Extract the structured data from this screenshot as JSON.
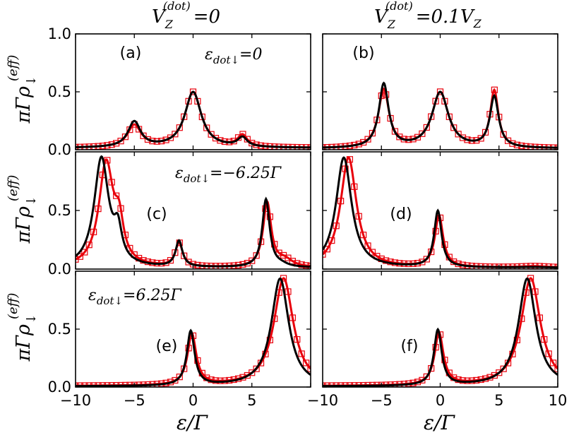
{
  "chart_data": {
    "type": "line",
    "layout": "3x2 grid of subplots, shared x axis per column, shared y axis per row",
    "column_titles": [
      {
        "lhs": "V",
        "sub": "Z",
        "sup": "(dot)",
        "rhs": "=0"
      },
      {
        "lhs": "V",
        "sub": "Z",
        "sup": "(dot)",
        "rhs": "=0.1",
        "rhs_var": "V",
        "rhs_sub": "Z"
      }
    ],
    "xlabel": "ε/Γ",
    "ylabel": {
      "prefix": "πΓρ",
      "sub": "↓",
      "sup": "(eff)"
    },
    "xlim": [
      -10,
      10
    ],
    "ylim": [
      0.0,
      1.0
    ],
    "x_ticks": [
      "−10",
      "−5",
      "0",
      "5",
      "10"
    ],
    "y_ticks_top_row": [
      "0.0",
      "0.5",
      "1.0"
    ],
    "y_ticks_other_rows": [
      "0.0",
      "0.5"
    ],
    "grid": false,
    "legend": "none",
    "series_styles": [
      {
        "role": "black solid line",
        "color": "#000000"
      },
      {
        "role": "red line with open square markers",
        "color": "#e8000b"
      }
    ],
    "rows": [
      {
        "annotation": {
          "sym": "ε",
          "sub": "dot↓",
          "rhs": "=0"
        }
      },
      {
        "annotation": {
          "sym": "ε",
          "sub": "dot↓",
          "rhs": "=−6.25Γ"
        }
      },
      {
        "annotation": {
          "sym": "ε",
          "sub": "dot↓",
          "rhs": "=6.25Γ"
        }
      }
    ],
    "panels": [
      {
        "label": "(a)",
        "row": 0,
        "col": 0,
        "black": {
          "baseline": 0.015,
          "peaks": [
            [
              -5,
              0.22,
              0.65
            ],
            [
              0,
              0.48,
              0.85
            ],
            [
              4.2,
              0.08,
              0.5
            ]
          ]
        },
        "red": {
          "baseline": 0.015,
          "peaks": [
            [
              -5,
              0.19,
              0.7
            ],
            [
              0,
              0.48,
              0.85
            ],
            [
              4.2,
              0.1,
              0.5
            ]
          ]
        }
      },
      {
        "label": "(b)",
        "row": 0,
        "col": 1,
        "black": {
          "baseline": 0.01,
          "peaks": [
            [
              -4.8,
              0.55,
              0.5
            ],
            [
              0,
              0.48,
              0.85
            ],
            [
              4.6,
              0.44,
              0.45
            ]
          ]
        },
        "red": {
          "baseline": 0.01,
          "peaks": [
            [
              -4.8,
              0.5,
              0.55
            ],
            [
              0,
              0.48,
              0.85
            ],
            [
              4.6,
              0.49,
              0.42
            ]
          ]
        }
      },
      {
        "label": "(c)",
        "row": 1,
        "col": 0,
        "black": {
          "baseline": 0.01,
          "peaks": [
            [
              -7.8,
              0.93,
              0.75
            ],
            [
              -6.4,
              0.25,
              0.4
            ],
            [
              -1.2,
              0.22,
              0.35
            ],
            [
              6.2,
              0.58,
              0.38
            ],
            [
              7.5,
              0.02,
              0.7
            ]
          ]
        },
        "red": {
          "baseline": 0.01,
          "peaks": [
            [
              -7.4,
              0.88,
              0.75
            ],
            [
              -6.3,
              0.3,
              0.45
            ],
            [
              -1.2,
              0.2,
              0.38
            ],
            [
              6.3,
              0.55,
              0.42
            ],
            [
              7.8,
              0.06,
              0.8
            ]
          ]
        }
      },
      {
        "label": "(d)",
        "row": 1,
        "col": 1,
        "black": {
          "baseline": 0.01,
          "peaks": [
            [
              -8.2,
              0.94,
              0.8
            ],
            [
              -0.2,
              0.48,
              0.38
            ],
            [
              8,
              0.005,
              1.5
            ]
          ]
        },
        "red": {
          "baseline": 0.01,
          "peaks": [
            [
              -7.8,
              0.94,
              0.82
            ],
            [
              -0.1,
              0.44,
              0.42
            ],
            [
              8,
              0.012,
              1.5
            ]
          ]
        }
      },
      {
        "label": "(e)",
        "row": 2,
        "col": 0,
        "black": {
          "baseline": 0.005,
          "peaks": [
            [
              -0.2,
              0.47,
              0.4
            ],
            [
              7.4,
              0.93,
              0.9
            ]
          ]
        },
        "red": {
          "baseline": 0.008,
          "peaks": [
            [
              -0.1,
              0.44,
              0.45
            ],
            [
              7.7,
              0.93,
              1.0
            ]
          ]
        }
      },
      {
        "label": "(f)",
        "row": 2,
        "col": 1,
        "black": {
          "baseline": 0.005,
          "peaks": [
            [
              -0.2,
              0.48,
              0.4
            ],
            [
              7.4,
              0.93,
              0.9
            ]
          ]
        },
        "red": {
          "baseline": 0.008,
          "peaks": [
            [
              -0.1,
              0.45,
              0.45
            ],
            [
              7.7,
              0.93,
              1.0
            ]
          ]
        }
      }
    ]
  }
}
